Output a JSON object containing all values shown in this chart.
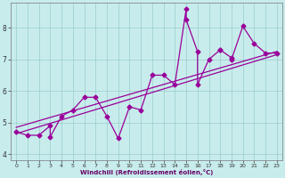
{
  "xlabel": "Windchill (Refroidissement éolien,°C)",
  "bg_color": "#c8ecec",
  "line_color": "#990099",
  "marker": "D",
  "markersize": 2.5,
  "linewidth": 0.9,
  "xlim": [
    -0.5,
    23.5
  ],
  "ylim": [
    3.8,
    8.8
  ],
  "xticks": [
    0,
    1,
    2,
    3,
    4,
    5,
    6,
    7,
    8,
    9,
    10,
    11,
    12,
    13,
    14,
    15,
    16,
    17,
    18,
    19,
    20,
    21,
    22,
    23
  ],
  "yticks": [
    4,
    5,
    6,
    7,
    8
  ],
  "grid_color": "#99cccc",
  "series": [
    [
      0,
      4.7
    ],
    [
      1,
      4.6
    ],
    [
      2,
      4.6
    ],
    [
      3,
      4.9
    ],
    [
      3,
      4.55
    ],
    [
      4,
      5.2
    ],
    [
      5,
      5.4
    ],
    [
      6,
      5.8
    ],
    [
      7,
      5.8
    ],
    [
      8,
      5.2
    ],
    [
      9,
      4.5
    ],
    [
      10,
      5.5
    ],
    [
      11,
      5.4
    ],
    [
      12,
      6.5
    ],
    [
      13,
      6.5
    ],
    [
      14,
      6.2
    ],
    [
      15,
      8.6
    ],
    [
      15,
      8.25
    ],
    [
      16,
      7.25
    ],
    [
      16,
      6.2
    ],
    [
      17,
      7.0
    ],
    [
      18,
      7.3
    ],
    [
      18,
      7.3
    ],
    [
      19,
      7.05
    ],
    [
      19,
      7.0
    ],
    [
      20,
      8.05
    ],
    [
      21,
      7.5
    ],
    [
      22,
      7.2
    ],
    [
      23,
      7.2
    ]
  ],
  "trend_upper": {
    "x": [
      0,
      23
    ],
    "y": [
      4.85,
      7.25
    ]
  },
  "trend_lower": {
    "x": [
      0,
      23
    ],
    "y": [
      4.65,
      7.15
    ]
  }
}
